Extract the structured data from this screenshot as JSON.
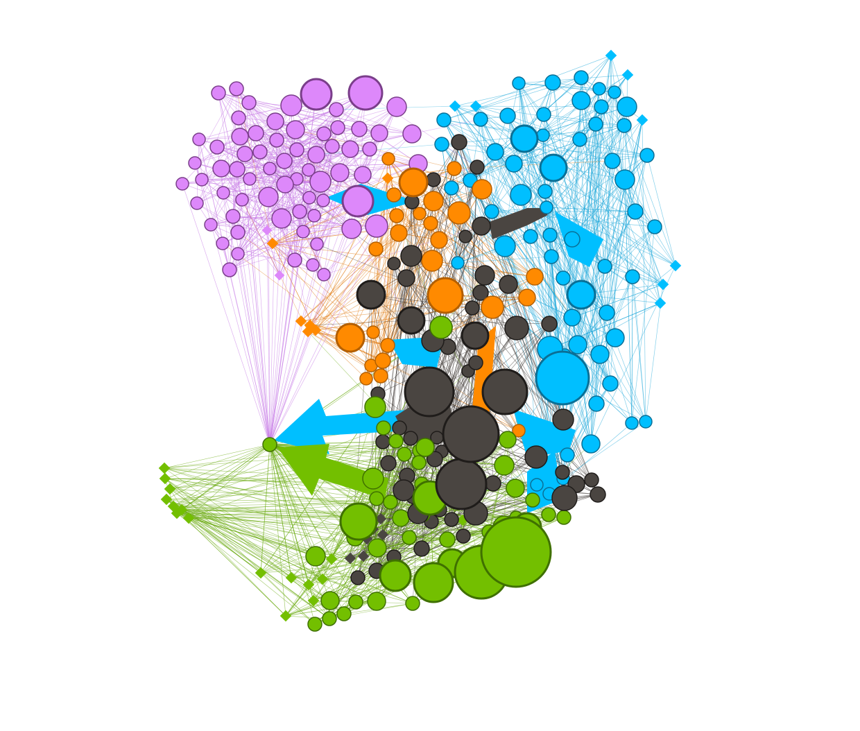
{
  "diagram": {
    "type": "network-graph",
    "communities": [
      {
        "name": "purple",
        "color": "#dd88fa",
        "stroke": "#7a3e8a",
        "edge": "#c77ae6"
      },
      {
        "name": "blue",
        "color": "#00bfff",
        "stroke": "#0a6f96",
        "edge": "#1aa6d9"
      },
      {
        "name": "orange",
        "color": "#ff8a00",
        "stroke": "#b35f00",
        "edge": "#e07a10"
      },
      {
        "name": "dark",
        "color": "#4a4541",
        "stroke": "#1f1c1a",
        "edge": "#3a3532"
      },
      {
        "name": "green",
        "color": "#73bf00",
        "stroke": "#3f7000",
        "edge": "#66a80a"
      }
    ],
    "background": "#ffffff"
  }
}
